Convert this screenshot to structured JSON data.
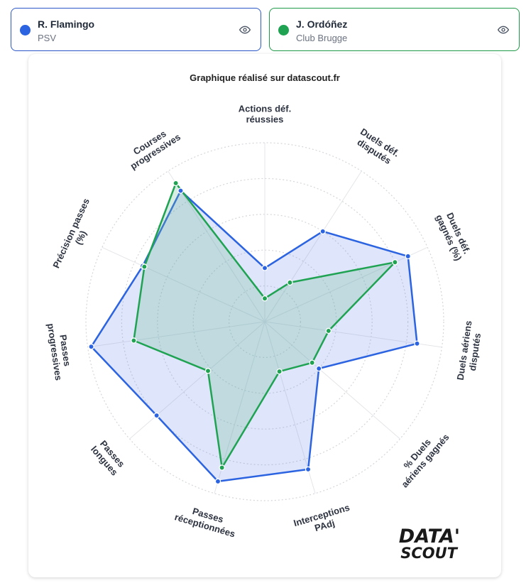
{
  "players": [
    {
      "name": "R. Flamingo",
      "club": "PSV",
      "color": "#2b63e0",
      "icon": "eye-icon"
    },
    {
      "name": "J. Ordóñez",
      "club": "Club Brugge",
      "color": "#1fa352",
      "icon": "eye-icon"
    }
  ],
  "caption": "Graphique réalisé sur datascout.fr",
  "logo": {
    "line1": "DATA'",
    "line2": "SCOUT"
  },
  "chart_data": {
    "type": "radar",
    "axes": [
      [
        "Actions déf.",
        "réussies"
      ],
      [
        "Duels déf.",
        "disputés"
      ],
      [
        "Duels déf.",
        "gagnés (%)"
      ],
      [
        "Duels aériens",
        "disputés"
      ],
      [
        "% Duels",
        "aériens gagnés"
      ],
      [
        "Interceptions",
        "PAdj"
      ],
      [
        "Passes",
        "réceptionnées"
      ],
      [
        "Passes",
        "longues"
      ],
      [
        "Passes",
        "progressives"
      ],
      [
        "Précision passes",
        "(%)"
      ],
      [
        "Courses",
        "progressives"
      ]
    ],
    "rmax": 100,
    "grid_levels": [
      20,
      40,
      60,
      80,
      100
    ],
    "series": [
      {
        "name": "R. Flamingo",
        "color": "#2b63e0",
        "fill": "rgba(110,140,235,0.22)",
        "values": [
          30,
          60,
          88,
          86,
          40,
          86,
          93,
          80,
          98,
          75,
          87
        ]
      },
      {
        "name": "J. Ordóñez",
        "color": "#1fa352",
        "fill": "rgba(110,185,150,0.28)",
        "values": [
          13,
          26,
          80,
          36,
          35,
          29,
          85,
          42,
          74,
          74,
          92
        ]
      }
    ]
  }
}
